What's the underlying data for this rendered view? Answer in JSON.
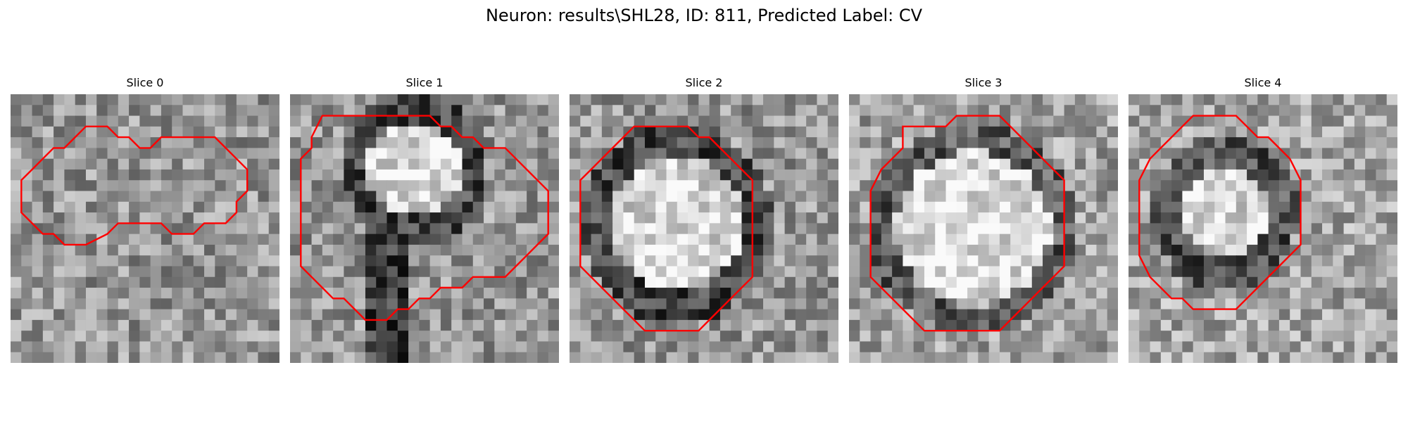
{
  "figure": {
    "title": "Neuron: results\\SHL28, ID: 811, Predicted Label: CV"
  },
  "contour_color": "#ff0000",
  "panels": [
    {
      "title": "Slice 0",
      "seed": 11,
      "pattern": "noisy",
      "contour": [
        [
          7,
          3
        ],
        [
          9,
          3
        ],
        [
          10,
          4
        ],
        [
          11,
          4
        ],
        [
          12,
          5
        ],
        [
          13,
          5
        ],
        [
          14,
          4
        ],
        [
          19,
          4
        ],
        [
          20,
          5
        ],
        [
          21,
          6
        ],
        [
          22,
          7
        ],
        [
          22,
          9
        ],
        [
          21,
          10
        ],
        [
          21,
          11
        ],
        [
          20,
          12
        ],
        [
          18,
          12
        ],
        [
          17,
          13
        ],
        [
          15,
          13
        ],
        [
          14,
          12
        ],
        [
          10,
          12
        ],
        [
          9,
          13
        ],
        [
          7,
          14
        ],
        [
          5,
          14
        ],
        [
          4,
          13
        ],
        [
          3,
          13
        ],
        [
          2,
          12
        ],
        [
          1,
          11
        ],
        [
          1,
          8
        ],
        [
          2,
          7
        ],
        [
          3,
          6
        ],
        [
          4,
          5
        ],
        [
          5,
          5
        ],
        [
          6,
          4
        ]
      ]
    },
    {
      "title": "Slice 1",
      "seed": 23,
      "pattern": "soma-top",
      "contour": [
        [
          3,
          2
        ],
        [
          13,
          2
        ],
        [
          14,
          3
        ],
        [
          15,
          3
        ],
        [
          16,
          4
        ],
        [
          17,
          4
        ],
        [
          18,
          5
        ],
        [
          20,
          5
        ],
        [
          21,
          6
        ],
        [
          22,
          7
        ],
        [
          23,
          8
        ],
        [
          24,
          9
        ],
        [
          24,
          13
        ],
        [
          23,
          14
        ],
        [
          22,
          15
        ],
        [
          21,
          16
        ],
        [
          20,
          17
        ],
        [
          17,
          17
        ],
        [
          16,
          18
        ],
        [
          14,
          18
        ],
        [
          13,
          19
        ],
        [
          12,
          19
        ],
        [
          11,
          20
        ],
        [
          10,
          20
        ],
        [
          9,
          21
        ],
        [
          7,
          21
        ],
        [
          6,
          20
        ],
        [
          5,
          19
        ],
        [
          4,
          19
        ],
        [
          3,
          18
        ],
        [
          2,
          17
        ],
        [
          1,
          16
        ],
        [
          1,
          6
        ],
        [
          2,
          5
        ],
        [
          2,
          4
        ]
      ]
    },
    {
      "title": "Slice 2",
      "seed": 37,
      "pattern": "ring",
      "contour": [
        [
          6,
          3
        ],
        [
          11,
          3
        ],
        [
          12,
          4
        ],
        [
          13,
          4
        ],
        [
          14,
          5
        ],
        [
          15,
          6
        ],
        [
          16,
          7
        ],
        [
          17,
          8
        ],
        [
          17,
          17
        ],
        [
          16,
          18
        ],
        [
          15,
          19
        ],
        [
          14,
          20
        ],
        [
          13,
          21
        ],
        [
          12,
          22
        ],
        [
          7,
          22
        ],
        [
          6,
          21
        ],
        [
          5,
          20
        ],
        [
          4,
          19
        ],
        [
          3,
          18
        ],
        [
          2,
          17
        ],
        [
          1,
          16
        ],
        [
          1,
          8
        ],
        [
          2,
          7
        ],
        [
          3,
          6
        ],
        [
          4,
          5
        ],
        [
          5,
          4
        ]
      ]
    },
    {
      "title": "Slice 3",
      "seed": 51,
      "pattern": "ring-large",
      "contour": [
        [
          5,
          3
        ],
        [
          9,
          3
        ],
        [
          10,
          2
        ],
        [
          14,
          2
        ],
        [
          15,
          3
        ],
        [
          16,
          4
        ],
        [
          17,
          5
        ],
        [
          18,
          6
        ],
        [
          19,
          7
        ],
        [
          20,
          8
        ],
        [
          20,
          16
        ],
        [
          19,
          17
        ],
        [
          18,
          18
        ],
        [
          17,
          19
        ],
        [
          16,
          20
        ],
        [
          15,
          21
        ],
        [
          14,
          22
        ],
        [
          7,
          22
        ],
        [
          6,
          21
        ],
        [
          5,
          20
        ],
        [
          4,
          19
        ],
        [
          3,
          18
        ],
        [
          2,
          17
        ],
        [
          2,
          9
        ],
        [
          3,
          7
        ],
        [
          4,
          6
        ],
        [
          5,
          5
        ]
      ]
    },
    {
      "title": "Slice 4",
      "seed": 67,
      "pattern": "ring-small",
      "contour": [
        [
          6,
          2
        ],
        [
          10,
          2
        ],
        [
          11,
          3
        ],
        [
          12,
          4
        ],
        [
          13,
          4
        ],
        [
          14,
          5
        ],
        [
          15,
          6
        ],
        [
          16,
          8
        ],
        [
          16,
          14
        ],
        [
          15,
          15
        ],
        [
          14,
          16
        ],
        [
          13,
          17
        ],
        [
          12,
          18
        ],
        [
          11,
          19
        ],
        [
          10,
          20
        ],
        [
          6,
          20
        ],
        [
          5,
          19
        ],
        [
          4,
          19
        ],
        [
          3,
          18
        ],
        [
          2,
          17
        ],
        [
          1,
          15
        ],
        [
          1,
          8
        ],
        [
          2,
          6
        ],
        [
          3,
          5
        ],
        [
          4,
          4
        ],
        [
          5,
          3
        ]
      ]
    }
  ]
}
